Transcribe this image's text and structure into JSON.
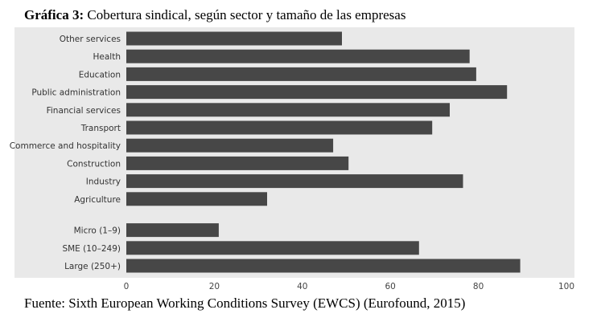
{
  "title": {
    "prefix": "Gráfica 3:",
    "text": "Cobertura sindical, según sector y tamaño de las empresas"
  },
  "source": "Fuente: Sixth European Working Conditions Survey (EWCS) (Eurofound, 2015)",
  "colors": {
    "plot_background": "#e9e9e9",
    "bar": "#474747"
  },
  "chart_data": {
    "type": "bar",
    "orientation": "horizontal",
    "groups": [
      {
        "categories": [
          "Other services",
          "Health",
          "Education",
          "Public administration",
          "Financial services",
          "Transport",
          "Commerce and hospitality",
          "Construction",
          "Industry",
          "Agriculture"
        ],
        "values": [
          49,
          78,
          79.5,
          86.5,
          73.5,
          69.5,
          47,
          50.5,
          76.5,
          32
        ]
      },
      {
        "categories": [
          "Micro (1–9)",
          "SME (10–249)",
          "Large (250+)"
        ],
        "values": [
          21,
          66.5,
          89.5
        ]
      }
    ],
    "xlim": [
      0,
      100
    ],
    "xticks": [
      0,
      20,
      40,
      60,
      80,
      100
    ],
    "grid": false,
    "legend": "none"
  }
}
